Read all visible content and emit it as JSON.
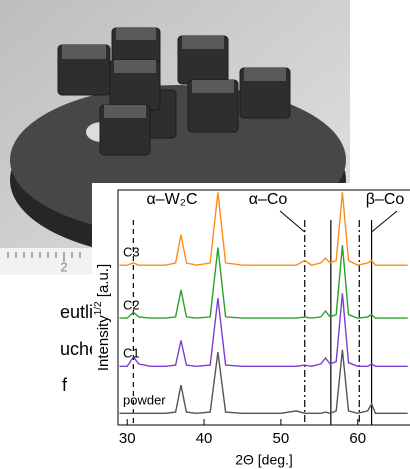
{
  "background": {
    "ruler_label": "2",
    "text_lines": [
      "eutlich",
      "uchen",
      "f die"
    ]
  },
  "chart_data": {
    "type": "line",
    "xlabel": "2Θ [deg.]",
    "ylabel": [
      "Intensity",
      "1/2",
      " [a.u.]"
    ],
    "xlim": [
      28.8,
      66.8
    ],
    "xticks": [
      30,
      40,
      50,
      60
    ],
    "ylim": [
      0,
      10
    ],
    "x": [
      29,
      30,
      30.8,
      31.5,
      33,
      35,
      36.3,
      37,
      37.7,
      39,
      40.8,
      41.8,
      42.8,
      45,
      48,
      50,
      52,
      53.1,
      54,
      55.2,
      55.8,
      56.4,
      57.2,
      58,
      58.8,
      60,
      61.3,
      61.8,
      62.3,
      64,
      66.5
    ],
    "series": [
      {
        "name": "C3",
        "color": "#ff8c1a",
        "values": [
          6.8,
          6.8,
          6.9,
          6.8,
          6.8,
          6.8,
          6.9,
          8.1,
          6.9,
          6.8,
          6.9,
          9.9,
          6.9,
          6.8,
          6.8,
          6.8,
          6.8,
          7.0,
          6.8,
          6.9,
          7.1,
          6.9,
          7.0,
          9.9,
          7.0,
          6.8,
          6.9,
          7.0,
          6.8,
          6.8,
          6.8
        ]
      },
      {
        "name": "C2",
        "color": "#2ca02c",
        "values": [
          4.55,
          4.55,
          4.8,
          4.6,
          4.55,
          4.55,
          4.6,
          5.75,
          4.6,
          4.55,
          4.6,
          7.55,
          4.6,
          4.55,
          4.55,
          4.55,
          4.55,
          4.6,
          4.55,
          4.6,
          4.85,
          4.6,
          4.7,
          7.65,
          4.7,
          4.55,
          4.6,
          4.7,
          4.55,
          4.55,
          4.55
        ]
      },
      {
        "name": "C1",
        "color": "#7b3fd0",
        "values": [
          2.5,
          2.5,
          2.9,
          2.6,
          2.5,
          2.5,
          2.55,
          3.6,
          2.55,
          2.5,
          2.55,
          5.4,
          2.55,
          2.5,
          2.5,
          2.5,
          2.5,
          2.55,
          2.5,
          2.6,
          2.85,
          2.6,
          2.7,
          5.6,
          2.65,
          2.5,
          2.5,
          2.6,
          2.5,
          2.5,
          2.5
        ]
      },
      {
        "name": "powder",
        "color": "#555555",
        "values": [
          0.5,
          0.5,
          0.5,
          0.5,
          0.5,
          0.5,
          0.55,
          1.7,
          0.55,
          0.5,
          0.55,
          3.1,
          0.55,
          0.5,
          0.5,
          0.5,
          0.6,
          0.5,
          0.5,
          0.5,
          0.55,
          0.5,
          0.6,
          3.2,
          0.6,
          0.5,
          0.6,
          0.9,
          0.5,
          0.5,
          0.5
        ]
      }
    ],
    "phases": [
      {
        "name": "α–W₂C",
        "style": "dashed",
        "lines": [
          30.8
        ]
      },
      {
        "name": "α–Co",
        "style": "dashdot",
        "lines": [
          53.1,
          60.2
        ]
      },
      {
        "name": "β–Co",
        "style": "solid",
        "lines": [
          56.5,
          61.8
        ]
      }
    ]
  }
}
